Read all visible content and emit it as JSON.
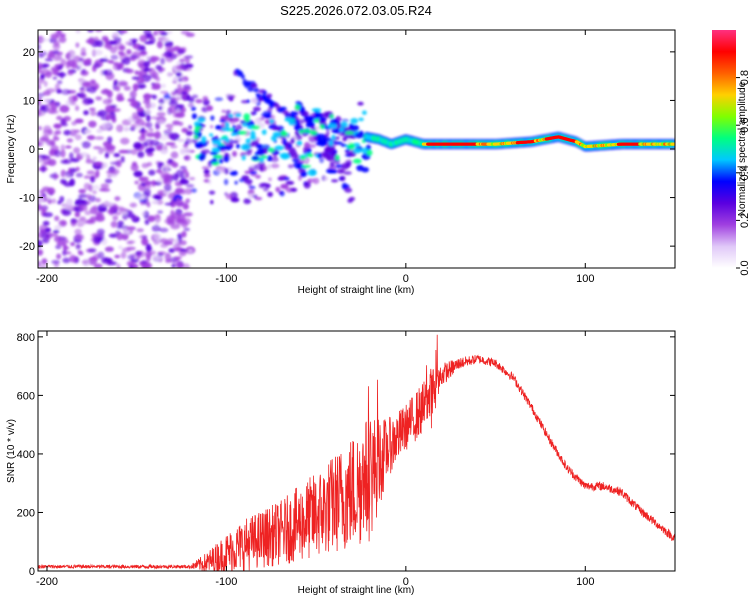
{
  "title": "S225.2026.072.03.05.R24",
  "chart_data": [
    {
      "type": "heatmap",
      "name": "spectrogram",
      "xlabel": "Height of straight line (km)",
      "ylabel": "Frequency (Hz)",
      "xlim": [
        -205,
        150
      ],
      "ylim": [
        -24.5,
        24.5
      ],
      "xticks": [
        -200,
        -100,
        0,
        100
      ],
      "xtick_labels": [
        "-200",
        "-100",
        "0",
        "100"
      ],
      "yticks": [
        -20,
        -10,
        0,
        10,
        20
      ],
      "ytick_labels": [
        "-20",
        "-10",
        "0",
        "10",
        "20"
      ],
      "colorbar": {
        "label": "Normalized spectral amplitude",
        "range": [
          0,
          1
        ],
        "ticks": [
          0.0,
          0.2,
          0.4,
          0.6,
          0.8
        ],
        "tick_labels": [
          "0.0",
          "0.2",
          "0.4",
          "0.6",
          "0.8"
        ],
        "colormap": [
          "#ffffff",
          "#e0c8f8",
          "#a040e0",
          "#5a00e0",
          "#0000ff",
          "#00c8ff",
          "#00ff80",
          "#80ff00",
          "#ffd000",
          "#ff6000",
          "#ff0000",
          "#ff3080"
        ]
      },
      "features": {
        "noise_region_x": [
          -205,
          -120
        ],
        "carrier_track": [
          [
            -22,
            2.5
          ],
          [
            -15,
            2
          ],
          [
            -8,
            1
          ],
          [
            0,
            2
          ],
          [
            10,
            1
          ],
          [
            30,
            1
          ],
          [
            50,
            1
          ],
          [
            70,
            1.5
          ],
          [
            85,
            2.5
          ],
          [
            95,
            1.5
          ],
          [
            100,
            0.5
          ],
          [
            120,
            1
          ],
          [
            150,
            1
          ]
        ]
      }
    },
    {
      "type": "line",
      "name": "snr",
      "xlabel": "Height of straight line (km)",
      "ylabel": "SNR (10 * v/v)",
      "xlim": [
        -205,
        150
      ],
      "ylim": [
        0,
        820
      ],
      "xticks": [
        -200,
        -100,
        0,
        100
      ],
      "xtick_labels": [
        "-200",
        "-100",
        "0",
        "100"
      ],
      "yticks": [
        0,
        200,
        400,
        600,
        800
      ],
      "ytick_labels": [
        "0",
        "200",
        "400",
        "600",
        "800"
      ],
      "color": "#ee2222",
      "envelope": {
        "x": [
          -205,
          -180,
          -150,
          -120,
          -110,
          -100,
          -90,
          -80,
          -70,
          -60,
          -50,
          -40,
          -30,
          -20,
          -10,
          0,
          10,
          15,
          20,
          30,
          40,
          50,
          60,
          70,
          80,
          90,
          100,
          110,
          120,
          130,
          140,
          150
        ],
        "mean": [
          15,
          15,
          15,
          15,
          30,
          60,
          90,
          110,
          130,
          160,
          190,
          230,
          270,
          320,
          420,
          490,
          560,
          600,
          670,
          710,
          725,
          710,
          660,
          560,
          450,
          350,
          290,
          290,
          270,
          210,
          160,
          110
        ],
        "spread": [
          6,
          6,
          6,
          6,
          40,
          70,
          90,
          100,
          110,
          130,
          150,
          170,
          200,
          220,
          100,
          80,
          90,
          110,
          40,
          20,
          15,
          15,
          15,
          15,
          15,
          15,
          15,
          15,
          15,
          15,
          15,
          15
        ]
      }
    }
  ]
}
